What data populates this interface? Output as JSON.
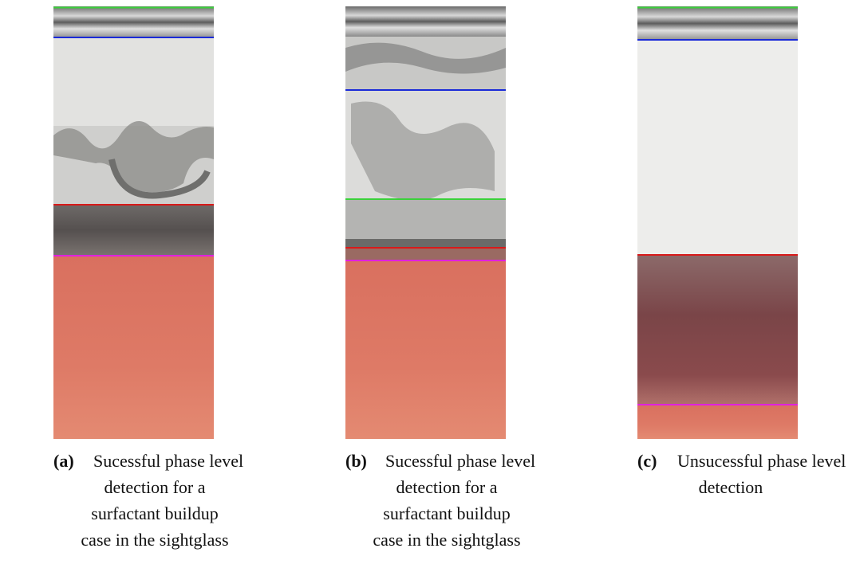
{
  "figure": {
    "panels": [
      {
        "label": "(a)",
        "lines": [
          "Sucessful phase level",
          "detection for a",
          "surfactant buildup",
          "case in the sightglass"
        ]
      },
      {
        "label": "(b)",
        "lines": [
          "Sucessful phase level",
          "detection for a",
          "surfactant buildup",
          "case in the sightglass"
        ]
      },
      {
        "label": "(c)",
        "lines": [
          "Unsucessful phase level",
          "detection"
        ]
      }
    ]
  }
}
